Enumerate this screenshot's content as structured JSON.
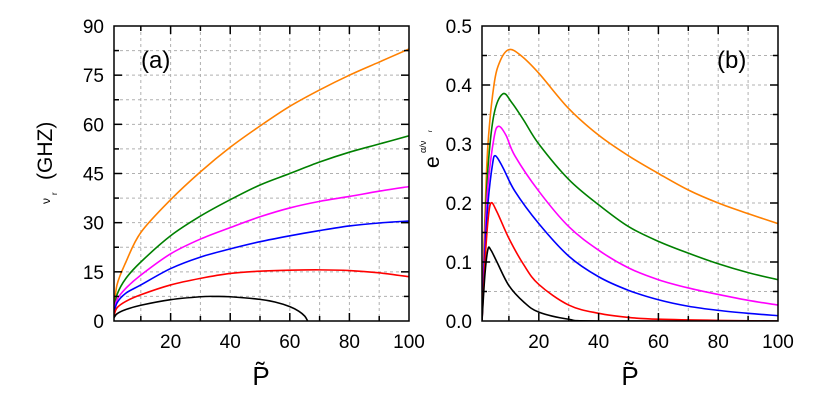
{
  "chart_data": [
    {
      "type": "line",
      "panel_label": "(a)",
      "xlabel": "P̃",
      "ylabel_main": "ν",
      "ylabel_sub": "r",
      "ylabel_unit": "(GHZ)",
      "xlim": [
        1,
        100
      ],
      "ylim": [
        0,
        90
      ],
      "xticks": [
        20,
        40,
        60,
        80,
        100
      ],
      "yticks": [
        0,
        15,
        30,
        45,
        60,
        75,
        90
      ],
      "grid": true,
      "series": [
        {
          "color": "#ff8000",
          "x": [
            1,
            2,
            5,
            10,
            20,
            30,
            40,
            50,
            60,
            70,
            80,
            90,
            100
          ],
          "y": [
            3,
            11,
            18,
            27,
            37,
            45.5,
            53,
            59.5,
            65.5,
            70.5,
            75,
            79,
            83
          ]
        },
        {
          "color": "#008000",
          "x": [
            1,
            2,
            5,
            10,
            20,
            30,
            40,
            50,
            60,
            70,
            80,
            90,
            100
          ],
          "y": [
            3,
            8,
            13,
            18,
            26,
            32,
            37,
            41.5,
            45,
            48.5,
            51.5,
            54,
            56.5
          ]
        },
        {
          "color": "#ff00ff",
          "x": [
            1,
            2,
            5,
            10,
            20,
            30,
            40,
            50,
            60,
            70,
            80,
            90,
            100
          ],
          "y": [
            2.5,
            6.5,
            10,
            14,
            20.5,
            25,
            28.5,
            31.8,
            34.5,
            36.5,
            38,
            39.6,
            41
          ]
        },
        {
          "color": "#0000ff",
          "x": [
            1,
            2,
            5,
            10,
            20,
            30,
            40,
            50,
            60,
            70,
            80,
            90,
            100
          ],
          "y": [
            2,
            5.5,
            8.5,
            11,
            16,
            19.5,
            22,
            24.2,
            26,
            27.6,
            29,
            29.9,
            30.5
          ]
        },
        {
          "color": "#ff0000",
          "x": [
            1,
            2,
            5,
            10,
            20,
            30,
            40,
            50,
            60,
            70,
            80,
            90,
            100
          ],
          "y": [
            1.5,
            4,
            6,
            8,
            11,
            13,
            14.5,
            15.2,
            15.5,
            15.6,
            15.4,
            14.7,
            13.5
          ]
        },
        {
          "color": "#000000",
          "x": [
            1,
            2,
            5,
            10,
            20,
            30,
            35,
            40,
            50,
            55,
            60,
            63,
            65,
            66
          ],
          "y": [
            1,
            2.2,
            3.5,
            4.8,
            6.5,
            7.4,
            7.5,
            7.4,
            6.6,
            5.8,
            4.4,
            3,
            1.5,
            0
          ]
        }
      ]
    },
    {
      "type": "line",
      "panel_label": "(b)",
      "xlabel": "P̃",
      "ylabel_main": "e",
      "ylabel_sup": "α/ν",
      "ylabel_sup_sub": "r",
      "xlim": [
        1,
        100
      ],
      "ylim": [
        0,
        0.5
      ],
      "xticks": [
        20,
        40,
        60,
        80,
        100
      ],
      "yticks": [
        "0.0",
        "0.1",
        "0.2",
        "0.3",
        "0.4",
        "0.5"
      ],
      "grid": true,
      "series": [
        {
          "color": "#ff8000",
          "x": [
            1,
            2,
            3,
            5,
            7,
            10,
            14,
            20,
            30,
            40,
            50,
            60,
            70,
            80,
            90,
            100
          ],
          "y": [
            0,
            0.18,
            0.3,
            0.4,
            0.44,
            0.46,
            0.45,
            0.42,
            0.36,
            0.315,
            0.28,
            0.25,
            0.222,
            0.2,
            0.182,
            0.165
          ]
        },
        {
          "color": "#008000",
          "x": [
            1,
            2,
            3,
            5,
            8,
            11,
            15,
            20,
            30,
            40,
            50,
            60,
            70,
            80,
            90,
            100
          ],
          "y": [
            0,
            0.15,
            0.26,
            0.35,
            0.385,
            0.37,
            0.34,
            0.3,
            0.24,
            0.197,
            0.16,
            0.135,
            0.115,
            0.097,
            0.082,
            0.07
          ]
        },
        {
          "color": "#ff00ff",
          "x": [
            1,
            2,
            3,
            5,
            6.5,
            9,
            12,
            20,
            30,
            40,
            50,
            60,
            70,
            80,
            90,
            100
          ],
          "y": [
            0,
            0.14,
            0.23,
            0.31,
            0.33,
            0.315,
            0.28,
            0.22,
            0.16,
            0.12,
            0.09,
            0.07,
            0.056,
            0.045,
            0.035,
            0.027
          ]
        },
        {
          "color": "#0000ff",
          "x": [
            1,
            2,
            3,
            4.5,
            5.5,
            8,
            12,
            20,
            30,
            40,
            50,
            60,
            70,
            80,
            90,
            100
          ],
          "y": [
            0,
            0.12,
            0.2,
            0.265,
            0.28,
            0.26,
            0.22,
            0.165,
            0.11,
            0.075,
            0.052,
            0.036,
            0.025,
            0.018,
            0.013,
            0.009
          ]
        },
        {
          "color": "#ff0000",
          "x": [
            1,
            2,
            3,
            4,
            6,
            10,
            15,
            20,
            30,
            40,
            50,
            60,
            80,
            100
          ],
          "y": [
            0,
            0.1,
            0.17,
            0.2,
            0.185,
            0.14,
            0.095,
            0.062,
            0.027,
            0.013,
            0.006,
            0.003,
            0.001,
            0
          ]
        },
        {
          "color": "#000000",
          "x": [
            1,
            2,
            3,
            4,
            6,
            10,
            15,
            20,
            30,
            40,
            100
          ],
          "y": [
            0,
            0.08,
            0.122,
            0.12,
            0.1,
            0.06,
            0.032,
            0.015,
            0.003,
            0,
            0
          ]
        }
      ]
    }
  ]
}
